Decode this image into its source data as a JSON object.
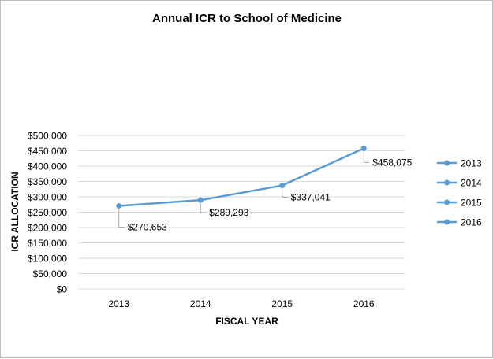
{
  "chart_data": {
    "type": "line",
    "title": "Annual ICR to School of Medicine",
    "xlabel": "FISCAL YEAR",
    "ylabel": "ICR ALLOCATION",
    "categories": [
      "2013",
      "2014",
      "2015",
      "2016"
    ],
    "values": [
      270653,
      289293,
      337041,
      458075
    ],
    "data_labels": [
      "$270,653",
      "$289,293",
      "$337,041",
      "$458,075"
    ],
    "ylim": [
      0,
      500000
    ],
    "yticks": [
      0,
      50000,
      100000,
      150000,
      200000,
      250000,
      300000,
      350000,
      400000,
      450000,
      500000
    ],
    "ytick_labels": [
      "$0",
      "$50,000",
      "$100,000",
      "$150,000",
      "$200,000",
      "$250,000",
      "$300,000",
      "$350,000",
      "$400,000",
      "$450,000",
      "$500,000"
    ],
    "grid": true,
    "legend": {
      "placement": "right",
      "entries": [
        "2013",
        "2014",
        "2015",
        "2016"
      ]
    },
    "colors": {
      "series": "#5b9bd5",
      "grid": "#d9d9d9",
      "leader": "#a6a6a6"
    }
  }
}
